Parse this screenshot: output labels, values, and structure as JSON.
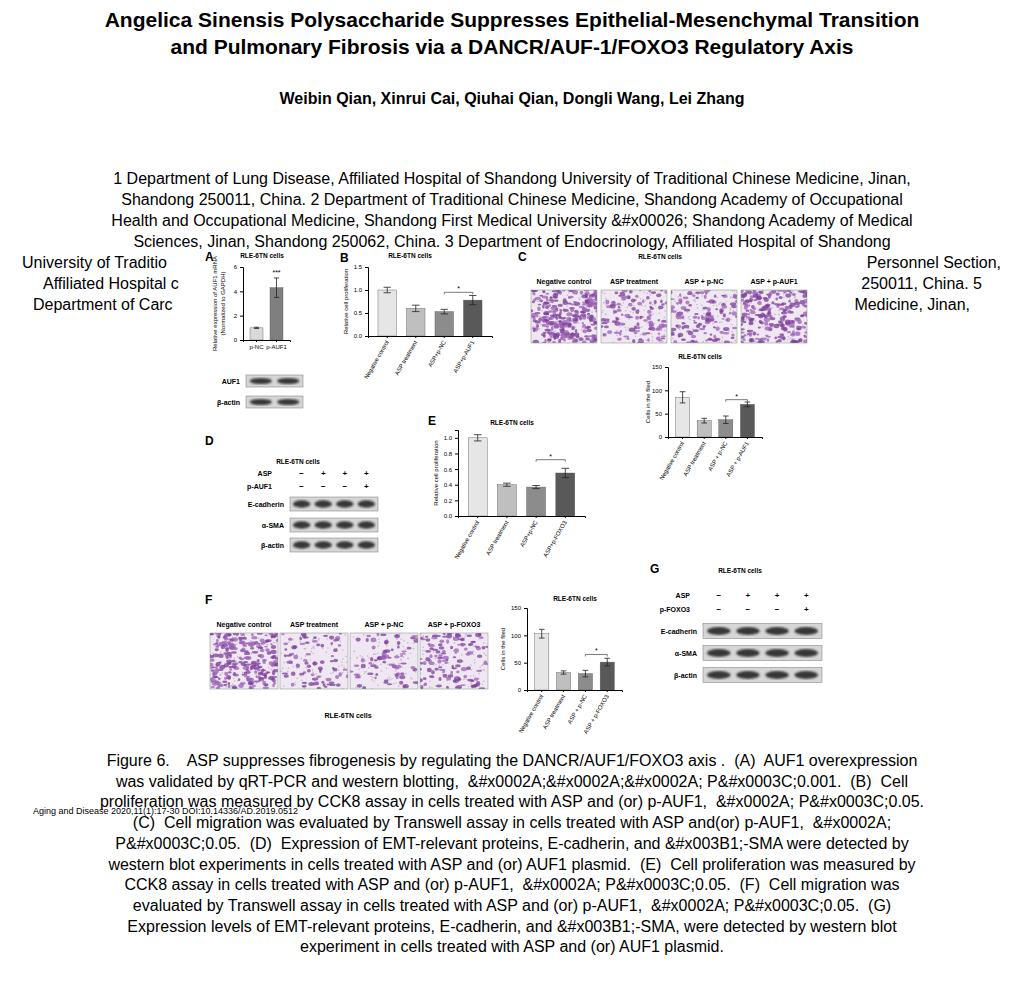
{
  "paper": {
    "title_lines": [
      "Angelica Sinensis Polysaccharide Suppresses Epithelial-Mesenchymal Transition",
      "and Pulmonary Fibrosis via a DANCR/AUF-1/FOXO3 Regulatory Axis"
    ],
    "authors": "Weibin Qian, Xinrui Cai, Qiuhai Qian, Dongli Wang, Lei Zhang",
    "affiliation_lines": [
      {
        "text": "1 Department of Lung Disease, Affiliated Hospital of Shandong University of Traditional Chinese Medicine, Jinan,"
      },
      {
        "text": "Shandong 250011, China. 2 Department of Traditional Chinese Medicine, Shandong Academy of Occupational"
      },
      {
        "text": "Health and Occupational Medicine, Shandong First Medical University &#x00026; Shandong Academy of Medical"
      },
      {
        "text": "Sciences, Jinan, Shandong 250062, China. 3 Department of Endocrinology, Affiliated Hospital of Shandong"
      },
      {
        "left": "University of Traditio",
        "right": "Personnel Section,"
      },
      {
        "left": "Affiliated Hospital c",
        "right": "250011, China. 5"
      },
      {
        "left": "Department of Carc",
        "right": "Medicine, Jinan,"
      }
    ],
    "journal": "Aging and Disease 2020,11(1):17-30 DOI:10.14336/AD.2019.0512"
  },
  "chart_data": [
    {
      "panel": "A",
      "type": "bar",
      "title": "RLE-6TN cells",
      "y_label": [
        "Relative expression of AUF1 mRNA",
        "(Normalized to GAPDH)"
      ],
      "categories": [
        "p-NC",
        "p-AUF1"
      ],
      "values": [
        1.0,
        4.3
      ],
      "errors": [
        0.05,
        0.8
      ],
      "colors": [
        "#d9d9d9",
        "#7f7f7f"
      ],
      "ylim": [
        0,
        6
      ],
      "yticks": [
        0,
        2,
        4,
        6
      ],
      "annotations": [
        {
          "text": "***",
          "from": "p-AUF1",
          "to": "p-AUF1",
          "y": 5.3
        }
      ]
    },
    {
      "panel": "B",
      "type": "bar",
      "title": "RLE-6TN cells",
      "y_label": "Relative cell proliferation",
      "categories": [
        "Negative control",
        "ASP treatment",
        "ASP+p-NC",
        "ASP+p-AUF1"
      ],
      "values": [
        1.0,
        0.6,
        0.53,
        0.78
      ],
      "errors": [
        0.06,
        0.07,
        0.05,
        0.1
      ],
      "colors": [
        "#e6e6e6",
        "#bfbfbf",
        "#8c8c8c",
        "#595959"
      ],
      "ylim": [
        0,
        1.5
      ],
      "yticks": [
        {
          "value": 0,
          "label": "0.0"
        },
        {
          "value": 0.5,
          "label": "0.5"
        },
        {
          "value": 1,
          "label": "1.0"
        },
        {
          "value": 1.5,
          "label": "1.5"
        }
      ],
      "annotations": [
        {
          "text": "*",
          "from": "ASP+p-NC",
          "to": "ASP+p-AUF1",
          "y": 0.95
        }
      ]
    },
    {
      "type": "bar",
      "title": "RLE-6TN cells",
      "y_label": "Cells in the filed",
      "categories": [
        "Negative control",
        "ASP treatment",
        "ASP + p-NC",
        "ASP + p-AUF1"
      ],
      "values": [
        85,
        35,
        37,
        70
      ],
      "errors": [
        12,
        5,
        8,
        5
      ],
      "colors": [
        "#e6e6e6",
        "#bfbfbf",
        "#8c8c8c",
        "#595959"
      ],
      "ylim": [
        0,
        150
      ],
      "yticks": [
        0,
        50,
        100,
        150
      ],
      "annotations": [
        {
          "text": "*",
          "from": "ASP + p-NC",
          "to": "ASP + p-AUF1",
          "y": 80
        }
      ]
    },
    {
      "panel": "E",
      "type": "bar",
      "title": "RLE-6TN cells",
      "y_label": "Relative cell proliferation",
      "categories": [
        "Negative control",
        "ASP treatment",
        "ASP+p-NC",
        "ASP+p-FOXO3"
      ],
      "values": [
        1.0,
        0.4,
        0.37,
        0.55
      ],
      "errors": [
        0.04,
        0.02,
        0.02,
        0.06
      ],
      "colors": [
        "#e6e6e6",
        "#bfbfbf",
        "#8c8c8c",
        "#595959"
      ],
      "ylim": [
        0,
        1.1
      ],
      "yticks": [
        {
          "value": 0,
          "label": "0.0"
        },
        {
          "value": 0.2,
          "label": "0.2"
        },
        {
          "value": 0.4,
          "label": "0.4"
        },
        {
          "value": 0.6,
          "label": "0.6"
        },
        {
          "value": 0.8,
          "label": "0.8"
        },
        {
          "value": 1,
          "label": "1.0"
        }
      ],
      "annotations": [
        {
          "text": "*",
          "from": "ASP+p-NC",
          "to": "ASP+p-FOXO3",
          "y": 0.72
        }
      ]
    },
    {
      "type": "bar",
      "title": "RLE-6TN cells",
      "y_label": "Cells in the filed",
      "categories": [
        "Negative control",
        "ASP treatment",
        "ASP + p-NC",
        "ASP + p-FOXO3"
      ],
      "values": [
        103,
        32,
        30,
        51
      ],
      "errors": [
        8,
        3,
        6,
        7
      ],
      "colors": [
        "#e6e6e6",
        "#bfbfbf",
        "#8c8c8c",
        "#595959"
      ],
      "ylim": [
        0,
        150
      ],
      "yticks": [
        0,
        50,
        100,
        150
      ],
      "annotations": [
        {
          "text": "*",
          "from": "ASP + p-NC",
          "to": "ASP + p-FOXO3",
          "y": 65
        }
      ]
    }
  ],
  "figure": {
    "transwells": [
      {
        "panel": "C",
        "title": "RLE-6TN cells",
        "labels": [
          "Negative control",
          "ASP treatment",
          "ASP + p-NC",
          "ASP + p-AUF1"
        ]
      },
      {
        "panel": "F",
        "labels": [
          "Negative control",
          "ASP treatment",
          "ASP + p-NC",
          "ASP + p-FOXO3"
        ],
        "footer": "RLE-6TN cells"
      }
    ],
    "blots": [
      {
        "rows": [
          "AUF1",
          "β-actin"
        ]
      },
      {
        "panel": "D",
        "title": "RLE-6TN cells",
        "conditions": [
          {
            "label": "ASP",
            "signs": [
              "−",
              "+",
              "+",
              "+"
            ]
          },
          {
            "label": "p-AUF1",
            "signs": [
              "−",
              "−",
              "−",
              "+"
            ]
          }
        ],
        "rows": [
          "E-cadherin",
          "α-SMA",
          "β-actin"
        ]
      },
      {
        "panel": "G",
        "title": "RLE-6TN cells",
        "conditions": [
          {
            "label": "ASP",
            "signs": [
              "−",
              "+",
              "+",
              "+"
            ]
          },
          {
            "label": "p-FOXO3",
            "signs": [
              "−",
              "−",
              "−",
              "+"
            ]
          }
        ],
        "rows": [
          "E-cadherin",
          "α-SMA",
          "β-actin"
        ]
      }
    ],
    "caption_lines": [
      "Figure 6.    ASP suppresses fibrogenesis by regulating the DANCR/AUF1/FOXO3 axis .  (A)  AUF1 overexpression",
      "was validated by qRT-PCR and western blotting,  &#x0002A;&#x0002A;&#x0002A; P&#x0003C;0.001.  (B)  Cell",
      "proliferation was measured by CCK8 assay in cells treated with ASP and (or) p-AUF1,  &#x0002A; P&#x0003C;0.05.",
      "(C)  Cell migration was evaluated by Transwell assay in cells treated with ASP and(or) p-AUF1,  &#x0002A;",
      "P&#x0003C;0.05.  (D)  Expression of EMT-relevant proteins, E-cadherin, and &#x003B1;-SMA were detected by",
      "western blot experiments in cells treated with ASP and (or) AUF1 plasmid.  (E)  Cell proliferation was measured by",
      "CCK8 assay in cells treated with ASP and (or) p-AUF1,  &#x0002A; P&#x0003C;0.05.  (F)  Cell migration was",
      "evaluated by Transwell assay in cells treated with ASP and (or) p-AUF1,  &#x0002A; P&#x0003C;0.05.  (G)",
      "Expression levels of EMT-relevant proteins, E-cadherin, and &#x003B1;-SMA, were detected by western blot",
      "experiment in cells treated with ASP and (or) AUF1 plasmid."
    ]
  }
}
